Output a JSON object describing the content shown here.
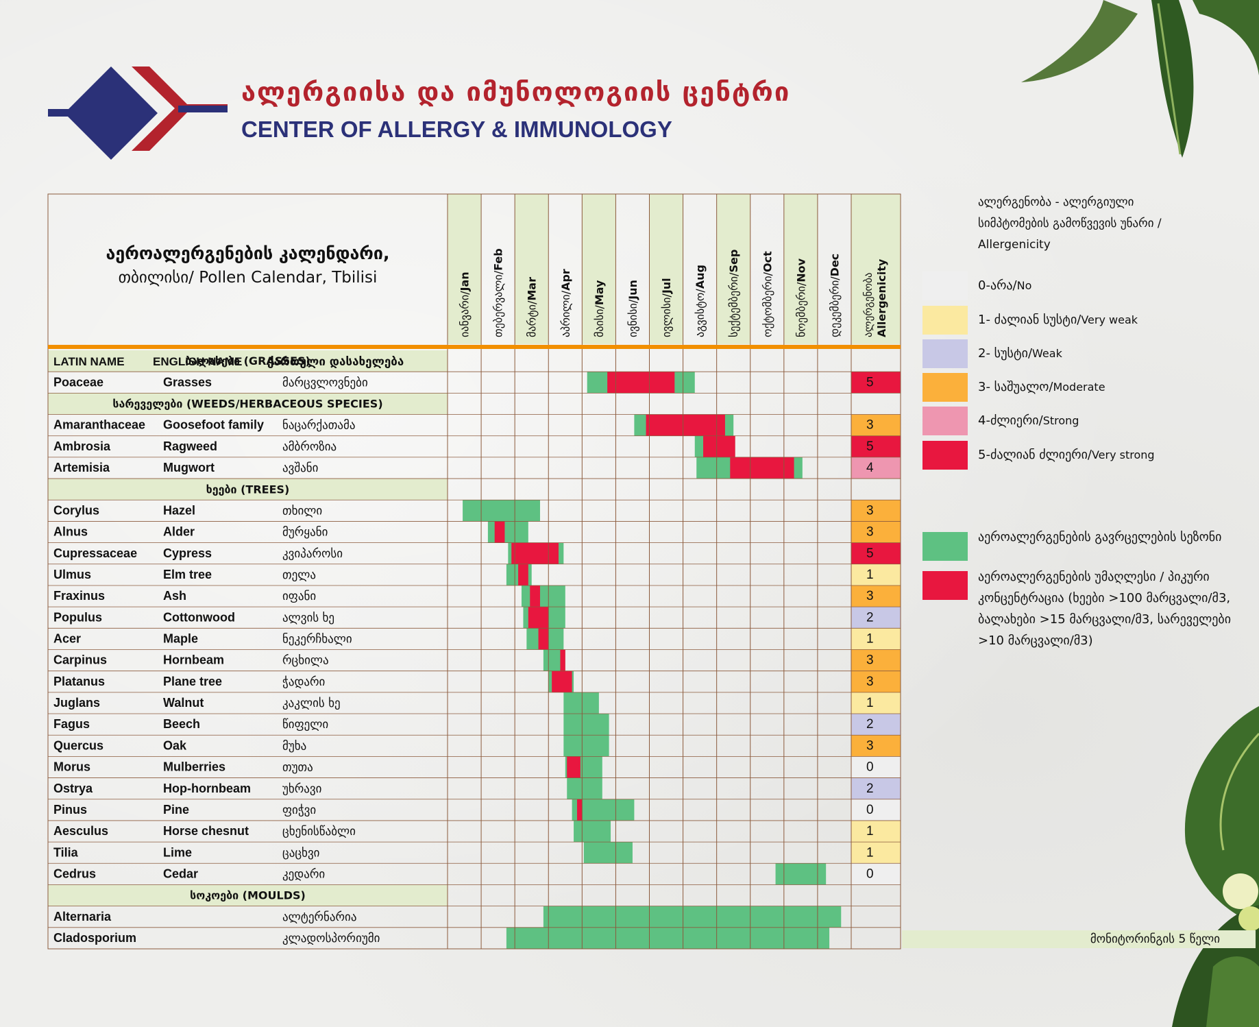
{
  "header": {
    "title_ka": "ალერგიისა და იმუნოლოგიის ცენტრი",
    "title_en": "CENTER OF ALLERGY & IMMUNOLOGY"
  },
  "colors": {
    "navy": "#2b3178",
    "red": "#b3232d",
    "season": "#5ec182",
    "peak": "#e8173f",
    "orange": "#f28f00",
    "band": "#e3ecce"
  },
  "legend": {
    "title": "ალერგენობა - ალერგიული სიმპტომების გამოწვევის უნარი / Allergenicity",
    "levels": [
      {
        "label": "0-არა/",
        "label_en": "No",
        "color": "#efefef"
      },
      {
        "label": "1- ძალიან სუსტი/",
        "label_en": "Very weak",
        "color": "#fbe9a0"
      },
      {
        "label": "2- სუსტი/",
        "label_en": "Weak",
        "color": "#c8c8e6"
      },
      {
        "label": "3- საშუალო/",
        "label_en": "Moderate",
        "color": "#fbb03b"
      },
      {
        "label": "4-ძლიერი/",
        "label_en": "Strong",
        "color": "#ee96b0"
      },
      {
        "label": "5-ძალიან ძლიერი/",
        "label_en": "Very strong",
        "color": "#e8173f"
      }
    ],
    "season_label": "აეროალერგენების გავრცელების სეზონი",
    "peak_label": "აეროალერგენების უმაღლესი / პიკური კონცენტრაცია (ხეები >100 მარცვალი/მ3, ბალახები >15 მარცვალი/მ3, სარეველები >10 მარცვალი/მ3)"
  },
  "monitoring": "მონიტორინგის 5 წელი",
  "chart_data": {
    "type": "table",
    "title_line1": "აეროალერგენების კალენდარი,",
    "title_line2": "თბილისი/  Pollen Calendar, Tbilisi",
    "columns": {
      "latin": "LATIN NAME",
      "english": "ENGLISH NAME",
      "georgian": "ქართული დასახელება",
      "allergenicity_ka": "ალერგენობა",
      "allergenicity_en": "Allergenicity"
    },
    "months": [
      {
        "ka": "იანვარი/",
        "en": "Jan"
      },
      {
        "ka": "თებერვალი/",
        "en": "Feb"
      },
      {
        "ka": "მარტი/",
        "en": "Mar"
      },
      {
        "ka": "აპრილი/",
        "en": "Apr"
      },
      {
        "ka": "მაისი/",
        "en": "May"
      },
      {
        "ka": "ივნისი/",
        "en": "Jun"
      },
      {
        "ka": "ივლისი/",
        "en": "Jul"
      },
      {
        "ka": "აგვისტო/",
        "en": "Aug"
      },
      {
        "ka": "სექტემბერი/",
        "en": "Sep"
      },
      {
        "ka": "ოქტომბერი/",
        "en": "Oct"
      },
      {
        "ka": "ნოემბერი/",
        "en": "Nov"
      },
      {
        "ka": "დეკემბერი/",
        "en": "Dec"
      }
    ],
    "month_highlight": [
      true,
      false,
      true,
      false,
      true,
      false,
      true,
      false,
      true,
      false,
      true,
      false
    ],
    "rows": [
      {
        "type": "group",
        "label": "ბალახები  (GRASSES)"
      },
      {
        "latin": "Poaceae",
        "english": "Grasses",
        "ka": "მარცვლოვნები",
        "allergenicity": 5,
        "season": [
          4.15,
          7.35
        ],
        "peaks": [
          [
            4.75,
            6.75
          ]
        ]
      },
      {
        "type": "group",
        "label": "სარეველები (WEEDS/HERBACEOUS SPECIES)"
      },
      {
        "latin": "Amaranthaceae",
        "english": "Goosefoot family",
        "ka": "ნაცარქათამა",
        "allergenicity": 3,
        "season": [
          5.55,
          8.5
        ],
        "peaks": [
          [
            5.9,
            8.25
          ]
        ]
      },
      {
        "latin": "Ambrosia",
        "english": "Ragweed",
        "ka": "ამბროზია",
        "allergenicity": 5,
        "season": [
          7.35,
          8.55
        ],
        "peaks": [
          [
            7.6,
            8.55
          ]
        ]
      },
      {
        "latin": "Artemisia",
        "english": "Mugwort",
        "ka": "ავშანი",
        "allergenicity": 4,
        "season": [
          7.4,
          10.55
        ],
        "peaks": [
          [
            8.4,
            10.3
          ]
        ]
      },
      {
        "type": "group",
        "label": "ხეები (TREES)"
      },
      {
        "latin": "Corylus",
        "english": "Hazel",
        "ka": "თხილი",
        "allergenicity": 3,
        "season": [
          0.45,
          2.75
        ],
        "peaks": []
      },
      {
        "latin": "Alnus",
        "english": "Alder",
        "ka": "მურყანი",
        "allergenicity": 3,
        "season": [
          1.2,
          2.4
        ],
        "peaks": [
          [
            1.4,
            1.7
          ]
        ]
      },
      {
        "latin": "Cupressaceae",
        "english": "Cypress",
        "ka": "კვიპაროსი",
        "allergenicity": 5,
        "season": [
          1.8,
          3.45
        ],
        "peaks": [
          [
            1.9,
            3.3
          ]
        ]
      },
      {
        "latin": "Ulmus",
        "english": "Elm tree",
        "ka": "თელა",
        "allergenicity": 1,
        "season": [
          1.75,
          2.5
        ],
        "peaks": [
          [
            2.1,
            2.4
          ]
        ]
      },
      {
        "latin": "Fraxinus",
        "english": "Ash",
        "ka": "იფანი",
        "allergenicity": 3,
        "season": [
          2.2,
          3.5
        ],
        "peaks": [
          [
            2.45,
            2.75
          ]
        ]
      },
      {
        "latin": "Populus",
        "english": "Cottonwood",
        "ka": "ალვის ხე",
        "allergenicity": 2,
        "season": [
          2.25,
          3.5
        ],
        "peaks": [
          [
            2.4,
            3.0
          ]
        ]
      },
      {
        "latin": "Acer",
        "english": "Maple",
        "ka": "ნეკერჩხალი",
        "allergenicity": 1,
        "season": [
          2.35,
          3.45
        ],
        "peaks": [
          [
            2.7,
            3.0
          ]
        ]
      },
      {
        "latin": "Carpinus",
        "english": "Hornbeam",
        "ka": "რცხილა",
        "allergenicity": 3,
        "season": [
          2.85,
          3.5
        ],
        "peaks": [
          [
            3.35,
            3.5
          ]
        ]
      },
      {
        "latin": "Platanus",
        "english": "Plane tree",
        "ka": "ჭადარი",
        "allergenicity": 3,
        "season": [
          3.0,
          3.75
        ],
        "peaks": [
          [
            3.1,
            3.7
          ]
        ]
      },
      {
        "latin": "Juglans",
        "english": "Walnut",
        "ka": "კაკლის ხე",
        "allergenicity": 1,
        "season": [
          3.45,
          4.5
        ],
        "peaks": []
      },
      {
        "latin": "Fagus",
        "english": "Beech",
        "ka": "წიფელი",
        "allergenicity": 2,
        "season": [
          3.45,
          4.8
        ],
        "peaks": []
      },
      {
        "latin": "Quercus",
        "english": "Oak",
        "ka": "მუხა",
        "allergenicity": 3,
        "season": [
          3.45,
          4.8
        ],
        "peaks": []
      },
      {
        "latin": "Morus",
        "english": "Mulberries",
        "ka": "თუთა",
        "allergenicity": 0,
        "season": [
          3.5,
          4.6
        ],
        "peaks": [
          [
            3.55,
            3.95
          ]
        ]
      },
      {
        "latin": "Ostrya",
        "english": "Hop-hornbeam",
        "ka": "უხრავი",
        "allergenicity": 2,
        "season": [
          3.55,
          4.6
        ],
        "peaks": []
      },
      {
        "latin": "Pinus",
        "english": "Pine",
        "ka": "ფიჭვი",
        "allergenicity": 0,
        "season": [
          3.7,
          5.55
        ],
        "peaks": [
          [
            3.85,
            4.0
          ]
        ]
      },
      {
        "latin": "Aesculus",
        "english": "Horse chesnut",
        "ka": "ცხენისწაბლი",
        "allergenicity": 1,
        "season": [
          3.75,
          4.85
        ],
        "peaks": []
      },
      {
        "latin": "Tilia",
        "english": "Lime",
        "ka": "ცაცხვი",
        "allergenicity": 1,
        "season": [
          4.05,
          5.5
        ],
        "peaks": []
      },
      {
        "latin": "Cedrus",
        "english": "Cedar",
        "ka": "კედარი",
        "allergenicity": 0,
        "season": [
          9.75,
          11.25
        ],
        "peaks": []
      },
      {
        "type": "group",
        "label": "სოკოები (MOULDS)"
      },
      {
        "latin": "Alternaria",
        "english": "",
        "ka": "ალტერნარია",
        "allergenicity": null,
        "season": [
          2.85,
          11.7
        ],
        "peaks": []
      },
      {
        "latin": "Cladosporium",
        "english": "",
        "ka": "კლადოსპორიუმი",
        "allergenicity": null,
        "season": [
          1.75,
          11.35
        ],
        "peaks": []
      }
    ]
  }
}
